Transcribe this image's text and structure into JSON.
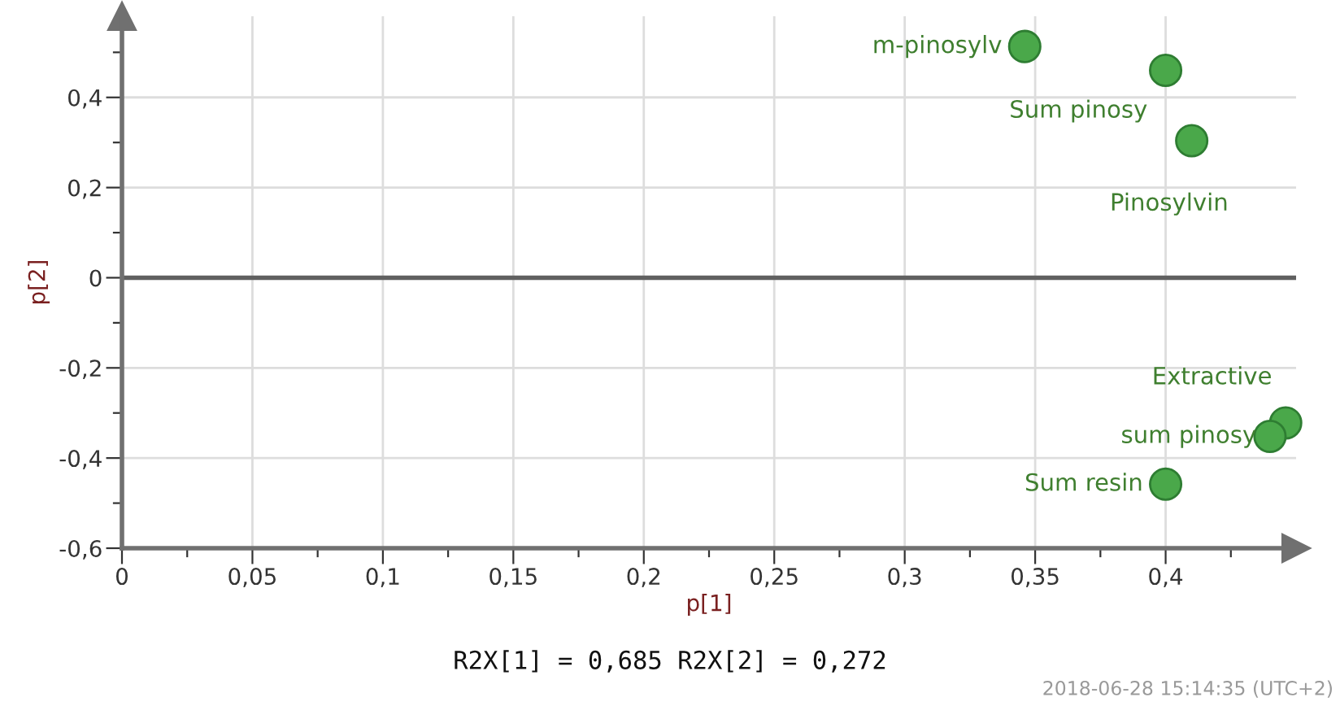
{
  "chart_data": {
    "type": "scatter",
    "xlabel": "p[1]",
    "ylabel": "p[2]",
    "x": [
      0.346,
      0.4,
      0.41,
      0.446,
      0.44,
      0.4
    ],
    "series": [
      {
        "color": "#4aa84a",
        "values": [
          0.513,
          0.46,
          0.304,
          -0.322,
          -0.352,
          -0.458
        ]
      }
    ],
    "marker": "circle",
    "xlim": [
      0,
      0.45
    ],
    "ylim": [
      -0.6,
      0.58
    ],
    "xticks": [
      0,
      {
        "value": 0.025,
        "label": null
      },
      {
        "value": 0.05,
        "label": "0,05"
      },
      {
        "value": 0.075,
        "label": null
      },
      {
        "value": 0.1,
        "label": "0,1"
      },
      {
        "value": 0.125,
        "label": null
      },
      {
        "value": 0.15,
        "label": "0,15"
      },
      {
        "value": 0.175,
        "label": null
      },
      {
        "value": 0.2,
        "label": "0,2"
      },
      {
        "value": 0.225,
        "label": null
      },
      {
        "value": 0.25,
        "label": "0,25"
      },
      {
        "value": 0.275,
        "label": null
      },
      {
        "value": 0.3,
        "label": "0,3"
      },
      {
        "value": 0.325,
        "label": null
      },
      {
        "value": 0.35,
        "label": "0,35"
      },
      {
        "value": 0.375,
        "label": null
      },
      {
        "value": 0.4,
        "label": "0,4"
      },
      {
        "value": 0.425,
        "label": null
      }
    ],
    "yticks": [
      {
        "value": -0.6,
        "label": "-0,6"
      },
      {
        "value": -0.5,
        "label": null
      },
      {
        "value": -0.4,
        "label": "-0,4"
      },
      {
        "value": -0.3,
        "label": null
      },
      {
        "value": -0.2,
        "label": "-0,2"
      },
      {
        "value": -0.1,
        "label": null
      },
      0,
      {
        "value": 0.1,
        "label": null
      },
      {
        "value": 0.2,
        "label": "0,2"
      },
      {
        "value": 0.3,
        "label": null
      },
      {
        "value": 0.4,
        "label": "0,4"
      },
      {
        "value": 0.5,
        "label": null
      }
    ],
    "grid": true,
    "ref_lines": [
      {
        "axis": "y",
        "value": 0,
        "color": "#606060"
      }
    ],
    "annotations": [
      {
        "text": "m-pinosylv",
        "x": 0.346,
        "y": 0.513
      },
      {
        "text": "Sum pinosy",
        "x": 0.4,
        "y": 0.46
      },
      {
        "text": "Pinosylvin",
        "x": 0.41,
        "y": 0.304
      },
      {
        "text": "Extractive",
        "x": 0.446,
        "y": -0.322
      },
      {
        "text": "sum pinosy",
        "x": 0.44,
        "y": -0.352
      },
      {
        "text": "Sum resin",
        "x": 0.4,
        "y": -0.458
      },
      "R2X[1] = 0,685 R2X[2] = 0,272",
      "2018-06-28 15:14:35 (UTC+2)"
    ]
  }
}
